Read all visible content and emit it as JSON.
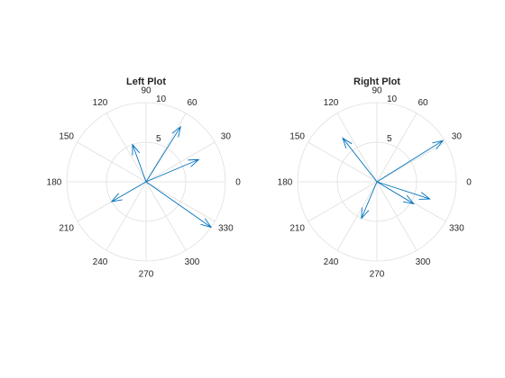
{
  "chart_data": [
    {
      "type": "polar-compass",
      "title": "Left Plot",
      "rlim": [
        0,
        10
      ],
      "r_ticks": [
        5,
        10
      ],
      "theta_ticks": [
        "0",
        "30",
        "60",
        "90",
        "120",
        "150",
        "180",
        "210",
        "240",
        "270",
        "300",
        "330"
      ],
      "grid": true,
      "series": [
        {
          "points": [
            {
              "theta": 58,
              "r": 8.2
            },
            {
              "theta": 110,
              "r": 5.0
            },
            {
              "theta": 23,
              "r": 7.2
            },
            {
              "theta": 210,
              "r": 5.0
            },
            {
              "theta": 325,
              "r": 10.0
            }
          ]
        }
      ]
    },
    {
      "type": "polar-compass",
      "title": "Right Plot",
      "rlim": [
        0,
        10
      ],
      "r_ticks": [
        5,
        10
      ],
      "theta_ticks": [
        "0",
        "30",
        "60",
        "90",
        "120",
        "150",
        "180",
        "210",
        "240",
        "270",
        "300",
        "330"
      ],
      "grid": true,
      "series": [
        {
          "points": [
            {
              "theta": 32,
              "r": 9.8
            },
            {
              "theta": 128,
              "r": 7.0
            },
            {
              "theta": 247,
              "r": 5.0
            },
            {
              "theta": 329,
              "r": 5.4
            },
            {
              "theta": 342,
              "r": 7.0
            }
          ]
        }
      ]
    }
  ]
}
